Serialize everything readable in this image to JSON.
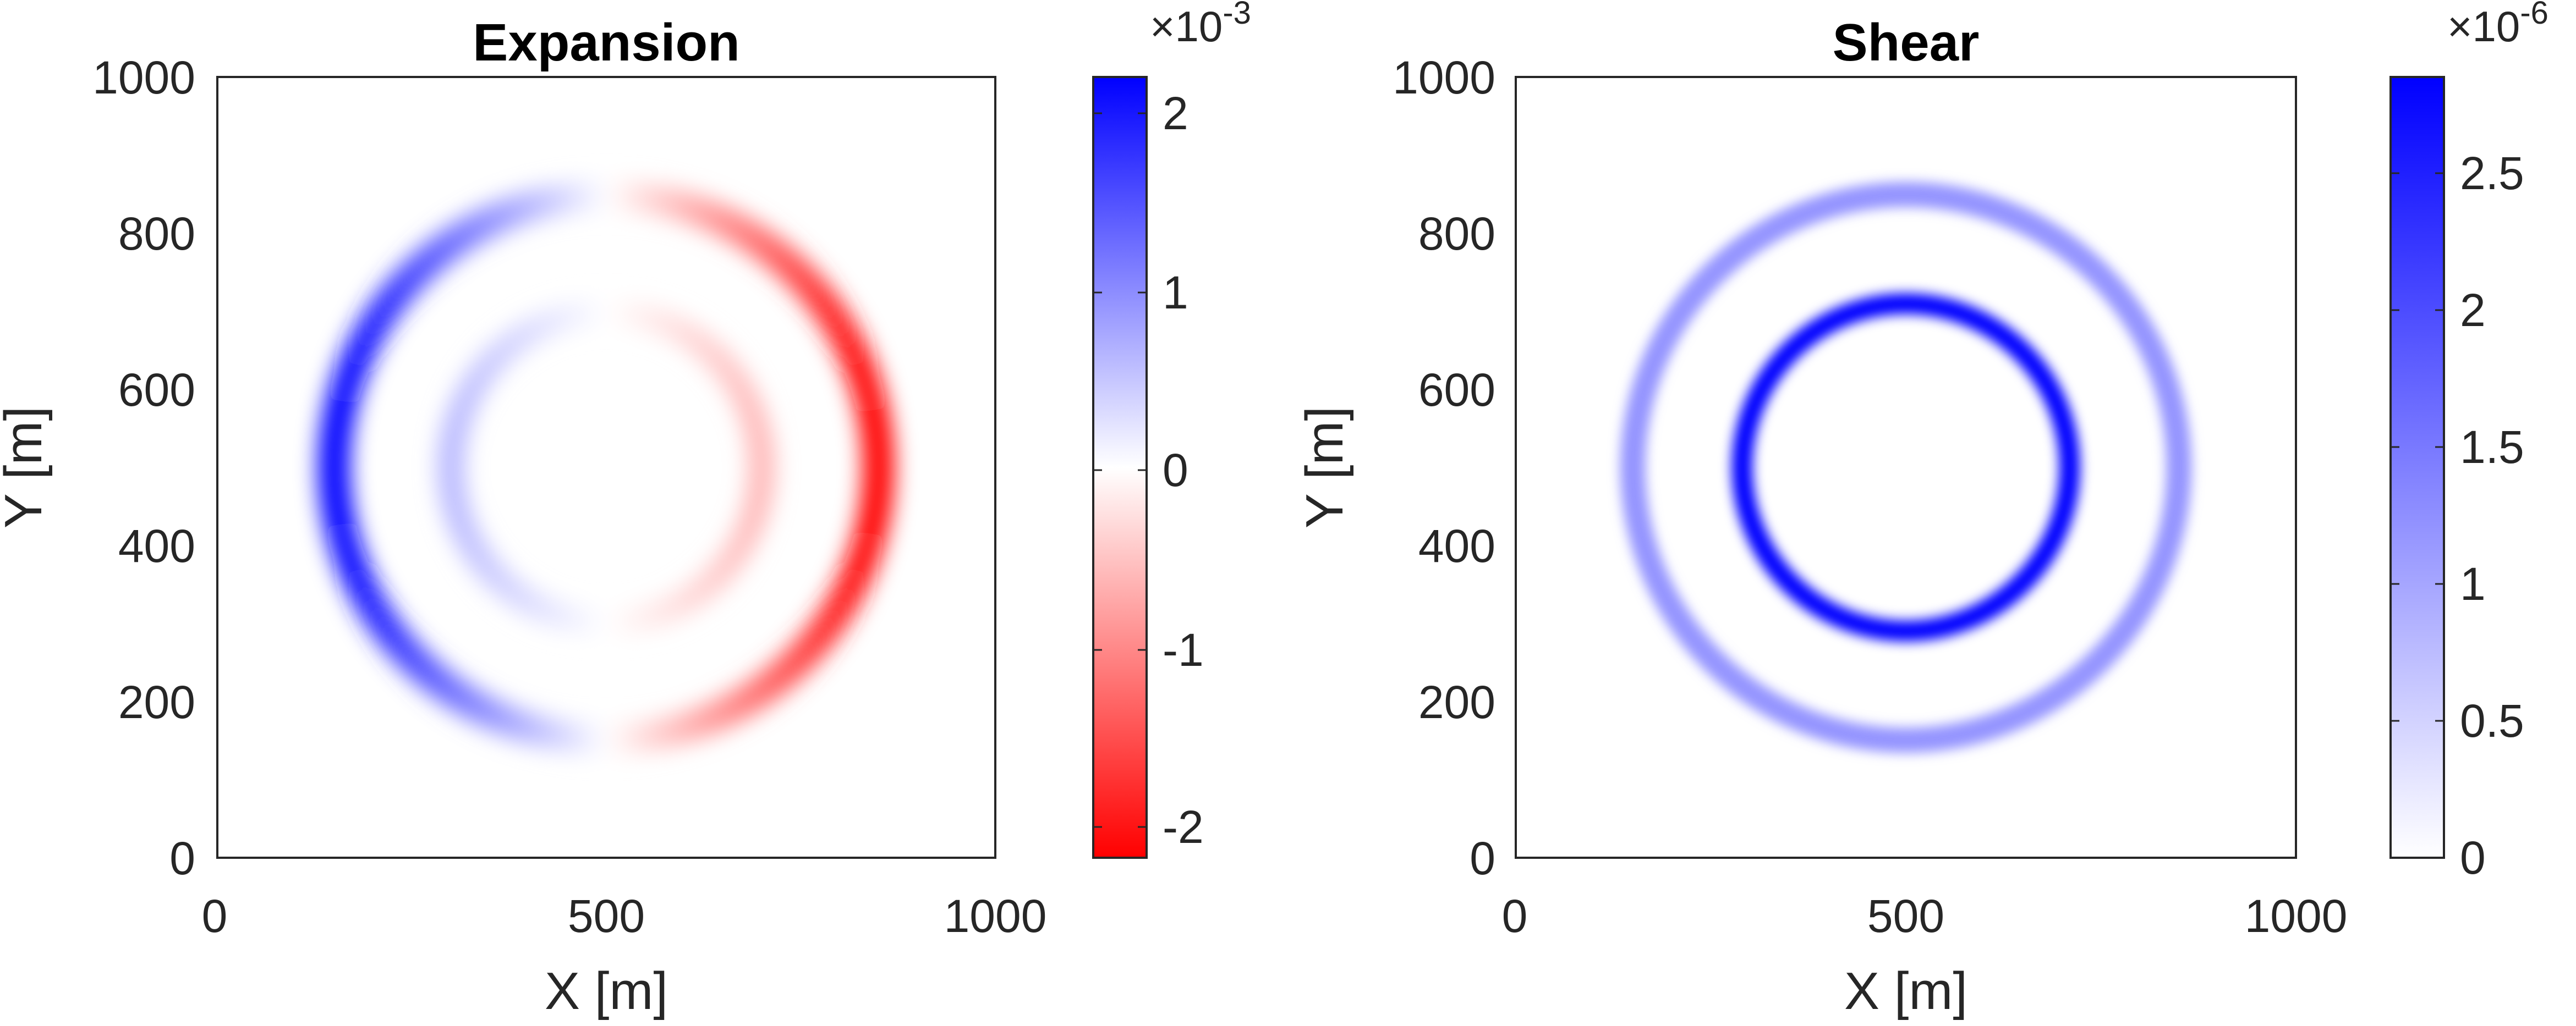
{
  "chart_data": [
    {
      "type": "heatmap",
      "title": "Expansion",
      "xlabel": "X [m]",
      "ylabel": "Y [m]",
      "xlim": [
        0,
        1000
      ],
      "ylim": [
        0,
        1000
      ],
      "xticks": [
        "0",
        "500",
        "1000"
      ],
      "yticks": [
        "0",
        "200",
        "400",
        "600",
        "800",
        "1000"
      ],
      "colorbar": {
        "multiplier": "×10",
        "exponent": "-3",
        "ticks": [
          "-2",
          "-1",
          "0",
          "1",
          "2"
        ],
        "range": [
          -2.2,
          2.2
        ],
        "colors": {
          "min": "#ff0000",
          "mid": "#ffffff",
          "max": "#0000ff"
        }
      },
      "field": {
        "center": [
          500,
          500
        ],
        "rings": [
          {
            "radius": 350,
            "width": 30,
            "peak": 2.2
          },
          {
            "radius": 200,
            "width": 26,
            "peak": 0.6
          }
        ],
        "pattern": "anti-symmetric in x (positive for x<500, negative for x>500), zero along x=500"
      }
    },
    {
      "type": "heatmap",
      "title": "Shear",
      "xlabel": "X [m]",
      "ylabel": "Y [m]",
      "xlim": [
        0,
        1000
      ],
      "ylim": [
        0,
        1000
      ],
      "xticks": [
        "0",
        "500",
        "1000"
      ],
      "yticks": [
        "0",
        "200",
        "400",
        "600",
        "800",
        "1000"
      ],
      "colorbar": {
        "multiplier": "×10",
        "exponent": "-6",
        "ticks": [
          "0",
          "0.5",
          "1",
          "1.5",
          "2",
          "2.5"
        ],
        "range": [
          0,
          2.85
        ],
        "colors": {
          "min": "#ffffff",
          "max": "#0000ff"
        }
      },
      "field": {
        "center": [
          500,
          500
        ],
        "rings": [
          {
            "radius": 350,
            "width": 24,
            "peak": 1.2
          },
          {
            "radius": 210,
            "width": 20,
            "peak": 2.85
          }
        ],
        "pattern": "radially symmetric rings"
      }
    }
  ]
}
